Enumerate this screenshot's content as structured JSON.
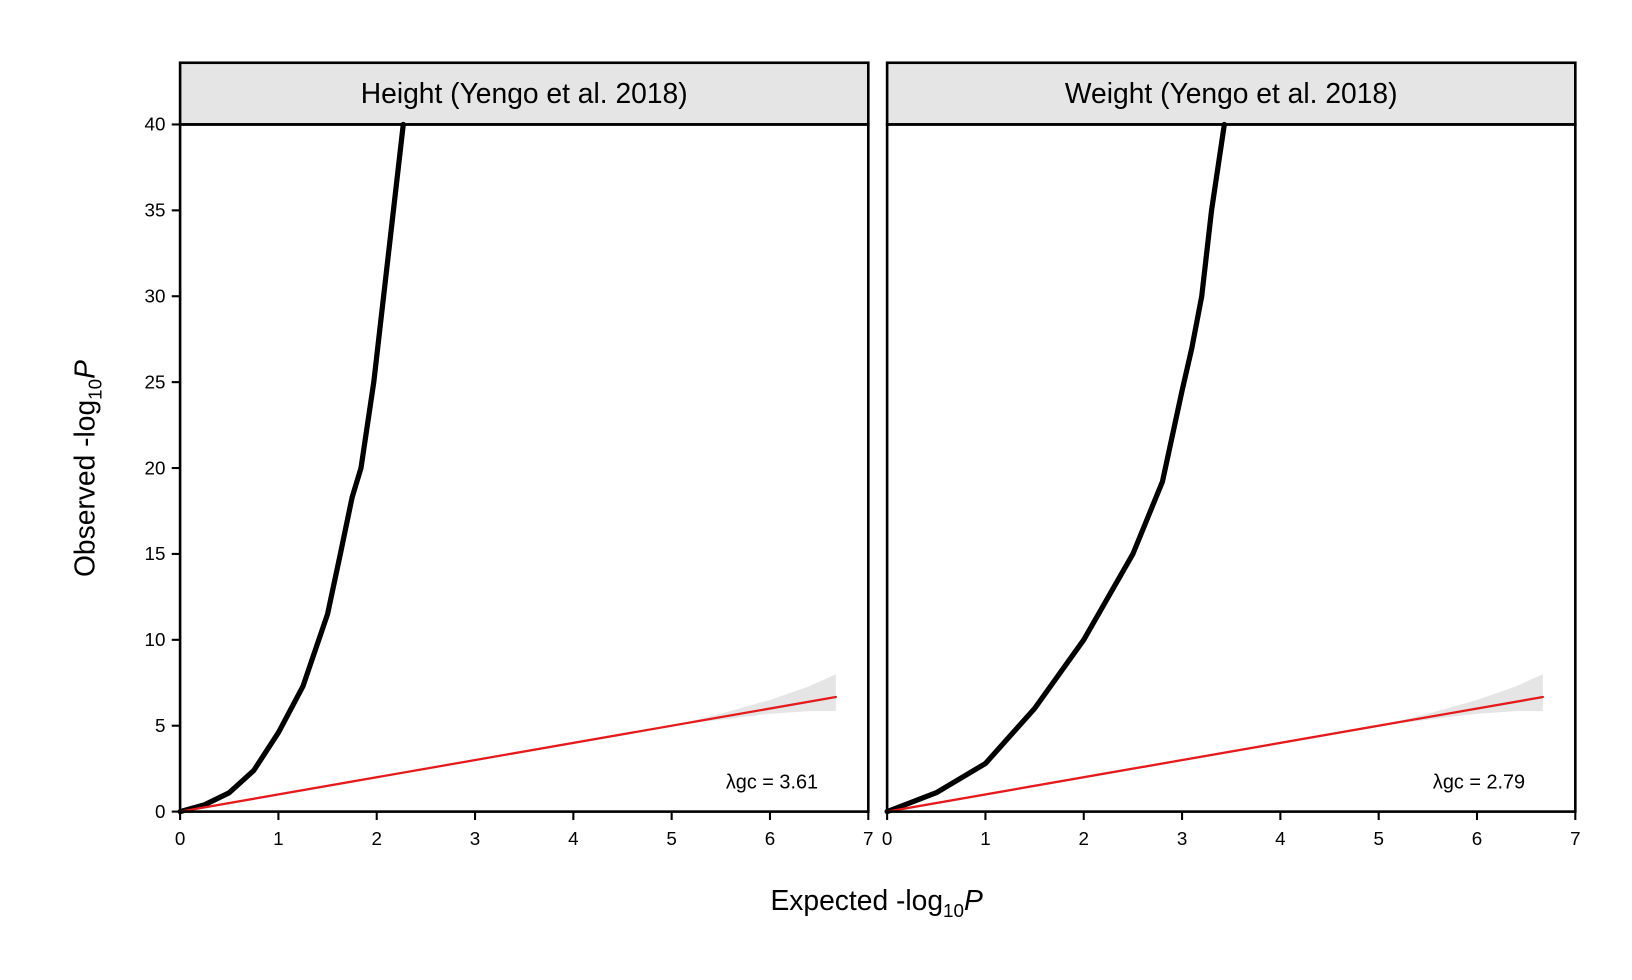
{
  "chart_data": [
    {
      "type": "line",
      "title": "Height (Yengo et al. 2018)",
      "annotation": "λgc = 3.61",
      "xlabel": [
        "Expected -log",
        "10",
        "P"
      ],
      "ylabel": [
        "Observed -log",
        "10",
        "P"
      ],
      "xlim": [
        0,
        7
      ],
      "ylim": [
        0,
        40
      ],
      "xticks": [
        0,
        1,
        2,
        3,
        4,
        5,
        6,
        7
      ],
      "yticks": [
        0,
        5,
        10,
        15,
        20,
        25,
        30,
        35,
        40
      ],
      "series": [
        {
          "color": "#000000",
          "x": [
            0,
            0.25,
            0.5,
            0.75,
            1,
            1.25,
            1.5,
            1.63,
            1.75,
            1.84,
            1.97,
            2.07,
            2.17,
            2.27
          ],
          "values": [
            0,
            0.4,
            1.1,
            2.4,
            4.6,
            7.3,
            11.5,
            15,
            18.3,
            20,
            25,
            30,
            35,
            40
          ]
        },
        {
          "color": "#e41a1c",
          "x": [
            0,
            6.67
          ],
          "values": [
            0,
            6.67
          ]
        }
      ],
      "band": {
        "color": "#e5e5e5",
        "x": [
          5,
          5.5,
          6,
          6.4,
          6.67
        ],
        "lower": [
          5,
          5.35,
          5.7,
          5.85,
          5.85
        ],
        "upper": [
          5,
          5.7,
          6.5,
          7.3,
          8
        ]
      }
    },
    {
      "type": "line",
      "title": "Weight (Yengo et al. 2018)",
      "annotation": "λgc = 2.79",
      "xlim": [
        0,
        7
      ],
      "ylim": [
        0,
        40
      ],
      "xticks": [
        0,
        1,
        2,
        3,
        4,
        5,
        6,
        7
      ],
      "series": [
        {
          "color": "#000000",
          "x": [
            0,
            0.5,
            1,
            1.5,
            2,
            2.5,
            2.8,
            3,
            3.1,
            3.2,
            3.3,
            3.43
          ],
          "values": [
            0,
            1.1,
            2.8,
            6,
            10,
            15,
            19.2,
            24.5,
            27,
            30,
            35,
            40
          ]
        },
        {
          "color": "#e41a1c",
          "x": [
            0,
            6.67
          ],
          "values": [
            0,
            6.67
          ]
        }
      ],
      "band": {
        "color": "#e5e5e5",
        "x": [
          5,
          5.5,
          6,
          6.4,
          6.67
        ],
        "lower": [
          5,
          5.35,
          5.7,
          5.85,
          5.85
        ],
        "upper": [
          5,
          5.7,
          6.5,
          7.3,
          8
        ]
      }
    }
  ]
}
